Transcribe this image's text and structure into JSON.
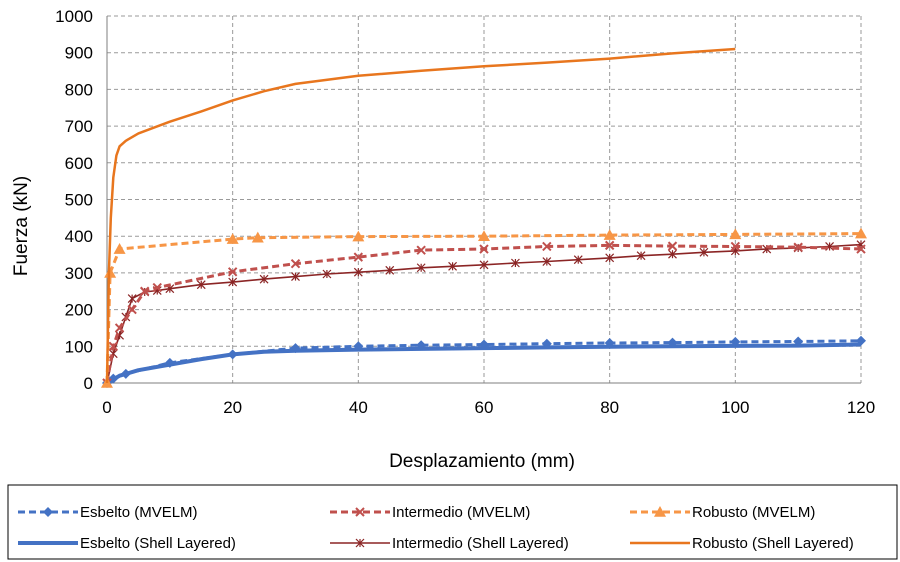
{
  "chart_data": {
    "type": "line",
    "xlabel": "Desplazamiento (mm)",
    "ylabel": "Fuerza (kN)",
    "xlim": [
      0,
      120
    ],
    "ylim": [
      0,
      1000
    ],
    "x_ticks": [
      "0",
      "20",
      "40",
      "60",
      "80",
      "100",
      "120"
    ],
    "y_ticks": [
      "0",
      "100",
      "200",
      "300",
      "400",
      "500",
      "600",
      "700",
      "800",
      "900",
      "1000"
    ],
    "grid": "dashed",
    "legend_position": "bottom",
    "series": [
      {
        "name": "Esbelto (MVELM)",
        "color": "#4472C4",
        "line_style": "dashed",
        "marker": "diamond",
        "x": [
          0,
          1,
          3,
          10,
          20,
          30,
          40,
          50,
          60,
          70,
          80,
          90,
          100,
          110,
          120
        ],
        "y": [
          0,
          12,
          25,
          55,
          78,
          95,
          100,
          103,
          105,
          107,
          109,
          110,
          112,
          113,
          115
        ]
      },
      {
        "name": "Intermedio (MVELM)",
        "color": "#C0504D",
        "line_style": "dashed",
        "marker": "x",
        "x": [
          0,
          1,
          2,
          4,
          6,
          8,
          20,
          30,
          40,
          50,
          60,
          70,
          80,
          90,
          100,
          110,
          120
        ],
        "y": [
          0,
          100,
          150,
          200,
          250,
          260,
          303,
          325,
          343,
          362,
          365,
          372,
          375,
          373,
          372,
          370,
          365
        ]
      },
      {
        "name": "Robusto (MVELM)",
        "color": "#F79646",
        "line_style": "dashed",
        "marker": "triangle",
        "x": [
          0,
          0.5,
          2,
          20,
          24,
          40,
          60,
          80,
          100,
          120
        ],
        "y": [
          0,
          300,
          365,
          392,
          396,
          399,
          400,
          403,
          405,
          407
        ]
      },
      {
        "name": "Esbelto (Shell Layered)",
        "color": "#4472C4",
        "line_style": "solid",
        "marker": "none",
        "x": [
          0,
          2,
          5,
          10,
          15,
          20,
          25,
          30,
          40,
          50,
          60,
          70,
          80,
          90,
          100,
          110,
          120
        ],
        "y": [
          0,
          20,
          35,
          50,
          65,
          78,
          85,
          88,
          91,
          93,
          95,
          97,
          99,
          100,
          101,
          102,
          105
        ]
      },
      {
        "name": "Intermedio (Shell Layered)",
        "color": "#8B2525",
        "line_style": "solid",
        "marker": "star",
        "x": [
          0,
          1,
          2,
          3,
          4,
          6,
          8,
          10,
          15,
          20,
          25,
          30,
          35,
          40,
          45,
          50,
          55,
          60,
          65,
          70,
          75,
          80,
          85,
          90,
          95,
          100,
          105,
          110,
          115,
          120
        ],
        "y": [
          0,
          80,
          130,
          180,
          230,
          248,
          252,
          257,
          268,
          275,
          283,
          290,
          297,
          302,
          307,
          314,
          318,
          322,
          327,
          331,
          336,
          341,
          347,
          351,
          356,
          360,
          365,
          368,
          372,
          377
        ]
      },
      {
        "name": "Robusto (Shell Layered)",
        "color": "#E8761E",
        "line_style": "solid",
        "marker": "none",
        "x": [
          0,
          0.3,
          0.6,
          1,
          1.5,
          2,
          3,
          5,
          10,
          15,
          20,
          25,
          30,
          40,
          50,
          60,
          70,
          80,
          90,
          100
        ],
        "y": [
          0,
          300,
          450,
          560,
          620,
          645,
          660,
          680,
          712,
          740,
          770,
          795,
          815,
          837,
          851,
          863,
          873,
          884,
          898,
          910
        ]
      }
    ]
  }
}
